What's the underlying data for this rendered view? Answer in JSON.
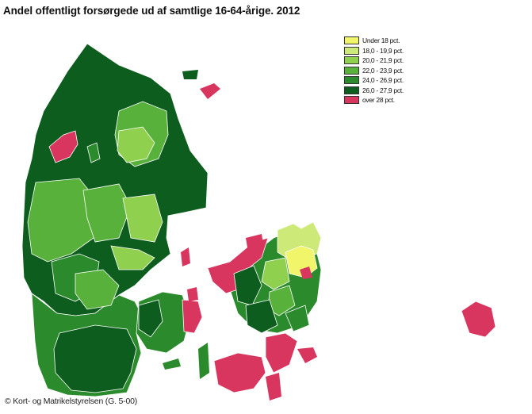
{
  "title": "Andel offentligt forsørgede ud af samtlige 16-64-årige. 2012",
  "legend": [
    {
      "label": "Under 18 pct.",
      "color": "#f0f56a"
    },
    {
      "label": "18,0 - 19,9 pct.",
      "color": "#cdea78"
    },
    {
      "label": "20,0 - 21,9 pct.",
      "color": "#8fd04f"
    },
    {
      "label": "22,0 - 23,9 pct.",
      "color": "#58b13a"
    },
    {
      "label": "24,0 - 26,9 pct.",
      "color": "#2a8a2c"
    },
    {
      "label": "26,0 - 27,9 pct.",
      "color": "#0d5e1e"
    },
    {
      "label": "over 28 pct.",
      "color": "#d8365e"
    }
  ],
  "copyright": "© Kort- og Matrikelstyrelsen (G. 5-00)"
}
